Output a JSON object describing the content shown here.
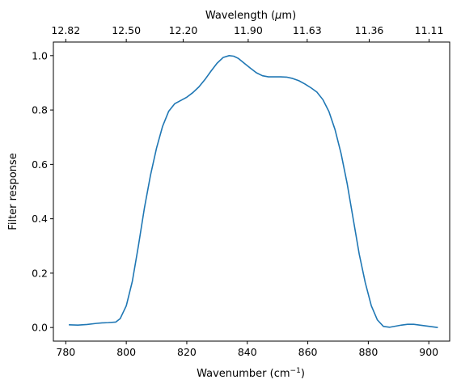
{
  "chart_data": {
    "type": "line",
    "title": "",
    "xlabel": "Wavenumber (cm",
    "xlabel_sup": "−1",
    "xlabel_close": ")",
    "ylabel": "Filter response",
    "top_axis_label_pre": "Wavelength (",
    "top_axis_label_mu": "μ",
    "top_axis_label_post": "m)",
    "xlim": [
      775.9,
      906.9
    ],
    "ylim": [
      -0.05,
      1.05
    ],
    "xticks": [
      780,
      800,
      820,
      840,
      860,
      880,
      900
    ],
    "xtick_labels": [
      "780",
      "800",
      "820",
      "840",
      "860",
      "880",
      "900"
    ],
    "yticks": [
      0.0,
      0.2,
      0.4,
      0.6,
      0.8,
      1.0
    ],
    "ytick_labels": [
      "0.0",
      "0.2",
      "0.4",
      "0.6",
      "0.8",
      "1.0"
    ],
    "top_ticks_wavenumber": [
      780.0,
      800.0,
      818.8,
      840.3,
      859.8,
      880.3,
      900.1
    ],
    "top_tick_labels": [
      "12.82",
      "12.50",
      "12.20",
      "11.90",
      "11.63",
      "11.36",
      "11.11"
    ],
    "grid": false,
    "line_color": "#1f77b4",
    "series": [
      {
        "x": [
          781,
          784,
          787,
          790,
          792,
          794,
          796.5,
          798,
          800,
          802,
          804,
          806,
          808,
          810,
          812,
          814,
          816,
          818,
          820,
          822,
          824,
          826,
          828,
          830,
          832,
          834,
          835.5,
          837,
          839,
          841,
          843,
          845,
          847,
          849,
          851,
          853,
          855,
          857,
          859,
          861,
          863,
          865,
          867,
          869,
          871,
          873,
          875,
          877,
          879,
          881,
          883,
          885,
          887,
          889,
          891,
          893,
          895,
          897,
          899,
          901,
          903
        ],
        "y": [
          0.01,
          0.009,
          0.011,
          0.015,
          0.017,
          0.018,
          0.02,
          0.033,
          0.08,
          0.17,
          0.3,
          0.44,
          0.56,
          0.66,
          0.74,
          0.795,
          0.823,
          0.835,
          0.847,
          0.864,
          0.885,
          0.912,
          0.943,
          0.972,
          0.993,
          1.0,
          0.998,
          0.99,
          0.972,
          0.954,
          0.937,
          0.926,
          0.922,
          0.922,
          0.922,
          0.921,
          0.916,
          0.908,
          0.896,
          0.882,
          0.866,
          0.838,
          0.794,
          0.728,
          0.64,
          0.53,
          0.4,
          0.27,
          0.165,
          0.08,
          0.028,
          0.004,
          0.001,
          0.005,
          0.009,
          0.012,
          0.012,
          0.009,
          0.006,
          0.003,
          0.0
        ]
      }
    ]
  }
}
